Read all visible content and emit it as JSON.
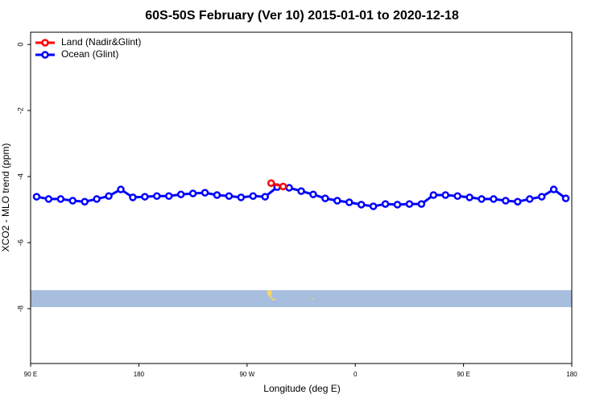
{
  "chart_data": {
    "type": "line",
    "title": "60S-50S February (Ver 10)   2015-01-01 to 2020-12-18",
    "x_label": "Longitude (deg E)",
    "y_label": "XCO2 - MLO trend (ppm)",
    "xlim": [
      90,
      540
    ],
    "xticks": [
      {
        "value": 90,
        "label": "90 E"
      },
      {
        "value": 180,
        "label": "180"
      },
      {
        "value": 270,
        "label": "90 W"
      },
      {
        "value": 360,
        "label": "0"
      },
      {
        "value": 450,
        "label": "90 E"
      },
      {
        "value": 540,
        "label": "180"
      }
    ],
    "ylim": [
      -9.66,
      0.37
    ],
    "yticks": [
      0,
      -2,
      -4,
      -6,
      -8
    ],
    "legend": "top-left",
    "series": [
      {
        "name": "Land (Nadir&Glint)",
        "color": "#ff0000",
        "x": [
          290,
          300
        ],
        "values": [
          -4.2,
          -4.3
        ]
      },
      {
        "name": "Ocean (Glint)",
        "color": "#0000ff",
        "x": [
          95,
          105,
          115,
          125,
          135,
          145,
          155,
          165,
          175,
          185,
          195,
          205,
          215,
          225,
          235,
          245,
          255,
          265,
          275,
          285,
          295,
          305,
          315,
          325,
          335,
          345,
          355,
          365,
          375,
          385,
          395,
          405,
          415,
          425,
          435,
          445,
          455,
          465,
          475,
          485,
          495,
          505,
          515,
          525,
          535
        ],
        "values": [
          -4.61,
          -4.68,
          -4.68,
          -4.73,
          -4.76,
          -4.68,
          -4.59,
          -4.39,
          -4.63,
          -4.61,
          -4.59,
          -4.59,
          -4.54,
          -4.51,
          -4.49,
          -4.56,
          -4.59,
          -4.63,
          -4.59,
          -4.61,
          -4.32,
          -4.34,
          -4.44,
          -4.54,
          -4.66,
          -4.73,
          -4.78,
          -4.85,
          -4.9,
          -4.83,
          -4.85,
          -4.83,
          -4.83,
          -4.56,
          -4.56,
          -4.59,
          -4.63,
          -4.68,
          -4.68,
          -4.73,
          -4.76,
          -4.68,
          -4.61,
          -4.39,
          -4.66
        ]
      }
    ]
  }
}
